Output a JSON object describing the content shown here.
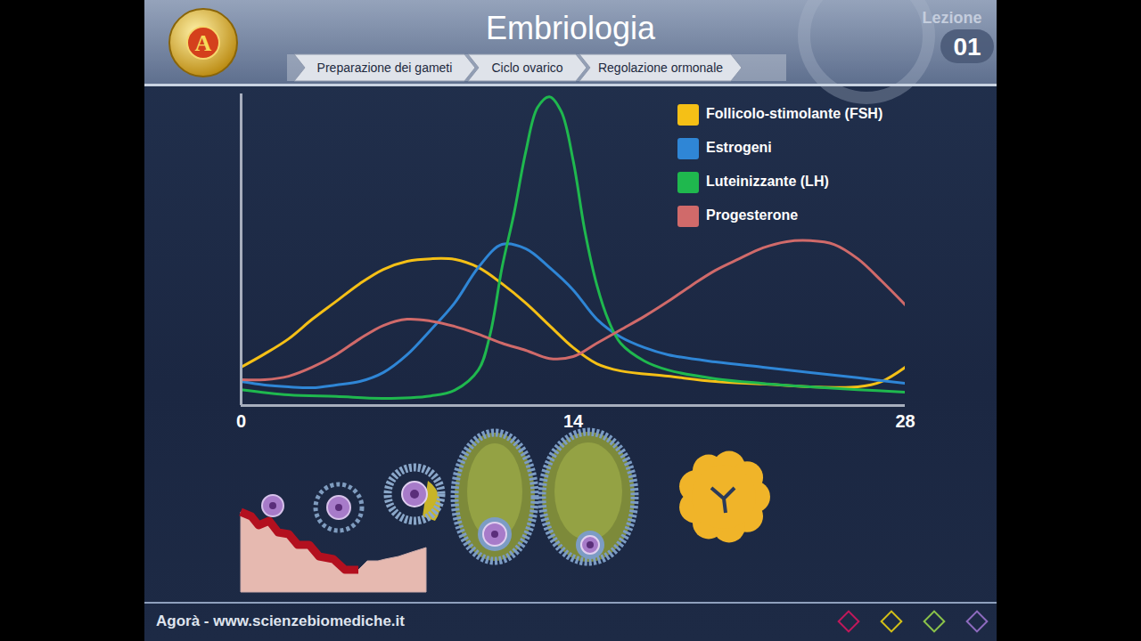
{
  "slide": {
    "logo": "A",
    "title": "Embriologia",
    "breadcrumb": [
      "Preparazione dei gameti",
      "Ciclo ovarico",
      "Regolazione ormonale"
    ],
    "lesson_label": "Lezione",
    "lesson_number": "01",
    "footer": "Agorà - www.scienzebiomediche.it"
  },
  "chart_data": {
    "type": "line",
    "xlim": [
      0,
      28
    ],
    "xticks": [
      0,
      14,
      28
    ],
    "ylim": [
      0,
      100
    ],
    "yticks": [],
    "tick_labels": "x",
    "grid": false,
    "legend": "top-right",
    "series": [
      {
        "name": "Follicolo-stimolante (FSH)",
        "color": "#f5c016",
        "x": [
          0,
          1,
          2,
          3,
          4,
          5,
          6,
          7,
          8,
          9,
          10,
          11,
          12,
          13,
          14,
          15,
          16,
          18,
          20,
          22,
          24,
          26,
          27,
          28
        ],
        "values": [
          12.3,
          16.6,
          21.4,
          27.7,
          33.4,
          39.1,
          43.7,
          46.3,
          47.1,
          46.9,
          44.3,
          39.1,
          32.9,
          25.7,
          18.6,
          13.4,
          11.1,
          9.4,
          7.7,
          6.9,
          6.0,
          6.0,
          7.7,
          12.3
        ]
      },
      {
        "name": "Estrogeni",
        "color": "#2f86d6",
        "x": [
          0,
          1,
          2,
          3,
          4,
          5,
          6,
          7,
          8,
          9,
          10,
          11,
          12,
          13,
          14,
          15,
          16,
          17,
          18,
          20,
          22,
          24,
          26,
          28
        ],
        "values": [
          7.7,
          6.6,
          6.0,
          5.7,
          6.6,
          7.7,
          10.6,
          16.3,
          24.3,
          32.9,
          44.3,
          51.7,
          50.3,
          44.3,
          37.1,
          27.7,
          22.0,
          18.6,
          16.3,
          14.0,
          12.3,
          10.6,
          8.9,
          7.1
        ]
      },
      {
        "name": "Luteinizzante (LH)",
        "color": "#1fb84e",
        "x": [
          0,
          2,
          4,
          6,
          8,
          9,
          10,
          10.5,
          11,
          11.5,
          12,
          12.5,
          13,
          13.5,
          14,
          14.5,
          15,
          15.5,
          16,
          17,
          18,
          20,
          22,
          24,
          26,
          28
        ],
        "values": [
          5.1,
          3.4,
          2.9,
          2.3,
          3.1,
          4.9,
          11.4,
          22.9,
          44.3,
          61.4,
          81.4,
          95.7,
          99.1,
          94.3,
          78.6,
          55.7,
          38.6,
          27.1,
          20.0,
          14.3,
          11.4,
          8.6,
          7.1,
          6.0,
          5.1,
          4.3
        ]
      },
      {
        "name": "Progesterone",
        "color": "#d06a6a",
        "x": [
          0,
          1,
          2,
          3,
          4,
          5,
          6,
          7,
          8,
          9,
          10,
          11,
          12,
          13,
          14,
          15,
          16,
          17,
          18,
          19,
          20,
          21,
          22,
          23,
          24,
          25,
          26,
          27,
          28
        ],
        "values": [
          8.3,
          8.3,
          9.4,
          12.3,
          16.3,
          21.4,
          25.7,
          27.7,
          27.1,
          25.4,
          22.9,
          20.0,
          17.7,
          15.1,
          15.7,
          20.0,
          24.3,
          28.6,
          33.4,
          38.6,
          43.4,
          47.1,
          50.6,
          52.6,
          52.9,
          51.7,
          47.1,
          40.0,
          32.3
        ]
      }
    ]
  }
}
